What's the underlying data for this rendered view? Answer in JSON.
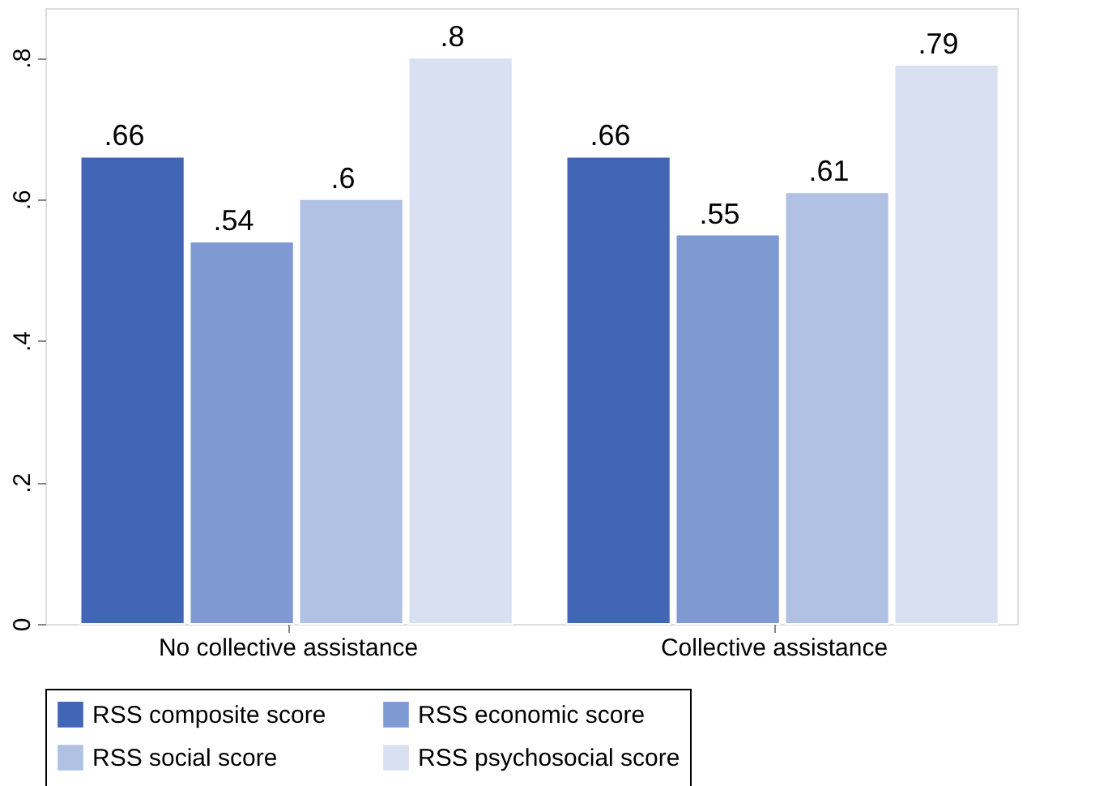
{
  "chart_data": {
    "type": "bar",
    "categories": [
      "No collective assistance",
      "Collective assistance"
    ],
    "series": [
      {
        "name": "RSS composite score",
        "color": "#4166b6",
        "values": [
          0.66,
          0.66
        ],
        "value_labels": [
          ".66",
          ".66"
        ]
      },
      {
        "name": "RSS economic score",
        "color": "#7f9ad3",
        "values": [
          0.54,
          0.55
        ],
        "value_labels": [
          ".54",
          ".55"
        ]
      },
      {
        "name": "RSS social score",
        "color": "#b0c1e4",
        "values": [
          0.6,
          0.61
        ],
        "value_labels": [
          ".6",
          ".61"
        ]
      },
      {
        "name": "RSS psychosocial score",
        "color": "#d9e0f2",
        "values": [
          0.8,
          0.79
        ],
        "value_labels": [
          ".8",
          ".79"
        ]
      }
    ],
    "ylim": [
      0,
      0.87
    ],
    "yticks": [
      {
        "value": 0,
        "label": "0"
      },
      {
        "value": 0.2,
        "label": ".2"
      },
      {
        "value": 0.4,
        "label": ".4"
      },
      {
        "value": 0.6,
        "label": ".6"
      },
      {
        "value": 0.8,
        "label": ".8"
      }
    ],
    "grid": false,
    "legend": "bottom"
  }
}
